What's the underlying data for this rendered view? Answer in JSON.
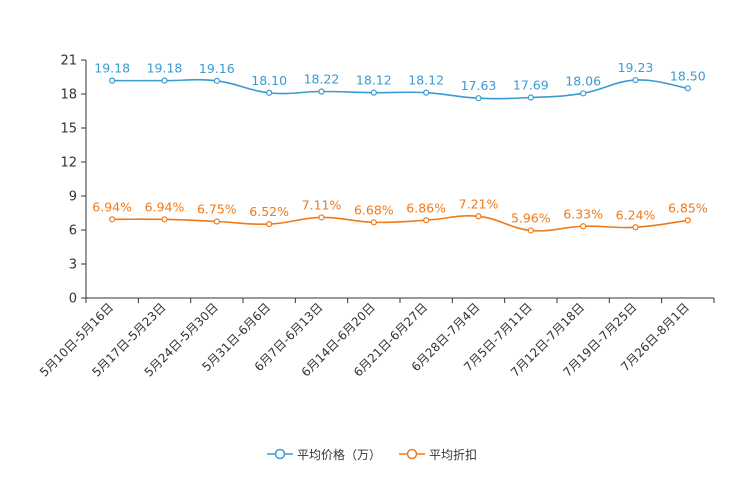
{
  "chart_data": {
    "type": "line",
    "categories": [
      "5月10日-5月16日",
      "5月17日-5月23日",
      "5月24日-5月30日",
      "5月31日-6月6日",
      "6月7日-6月13日",
      "6月14日-6月20日",
      "6月21日-6月27日",
      "6月28日-7月4日",
      "7月5日-7月11日",
      "7月12日-7月18日",
      "7月19日-7月25日",
      "7月26日-8月1日"
    ],
    "ylim": [
      0,
      21
    ],
    "yticks": [
      0,
      3,
      6,
      9,
      12,
      15,
      18,
      21
    ],
    "series": [
      {
        "name": "平均价格（万）",
        "color": "#3a9bd0",
        "values": [
          19.18,
          19.18,
          19.16,
          18.1,
          18.22,
          18.12,
          18.12,
          17.63,
          17.69,
          18.06,
          19.23,
          18.5
        ],
        "labels": [
          "19.18",
          "19.18",
          "19.16",
          "18.10",
          "18.22",
          "18.12",
          "18.12",
          "17.63",
          "17.69",
          "18.06",
          "19.23",
          "18.50"
        ]
      },
      {
        "name": "平均折扣",
        "color": "#f07a1a",
        "values": [
          6.94,
          6.94,
          6.75,
          6.52,
          7.11,
          6.68,
          6.86,
          7.21,
          5.96,
          6.33,
          6.24,
          6.85
        ],
        "labels": [
          "6.94%",
          "6.94%",
          "6.75%",
          "6.52%",
          "7.11%",
          "6.68%",
          "6.86%",
          "7.21%",
          "5.96%",
          "6.33%",
          "6.24%",
          "6.85%"
        ]
      }
    ],
    "legend_position": "bottom-center",
    "grid": false
  }
}
